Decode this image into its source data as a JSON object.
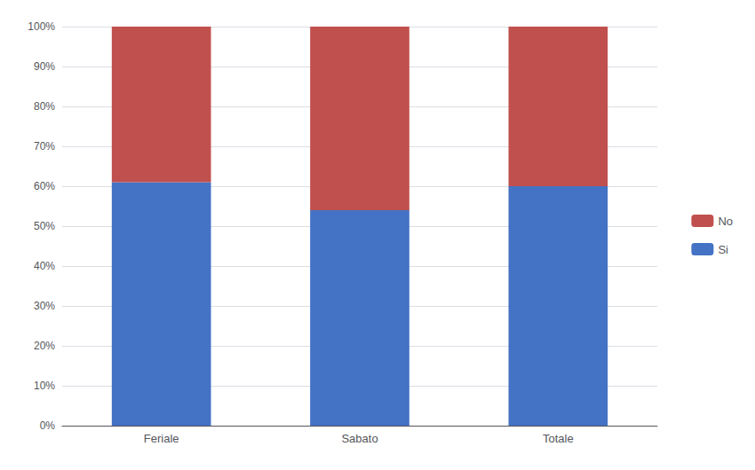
{
  "chart_data": {
    "type": "bar",
    "stacked": true,
    "categories": [
      "Feriale",
      "Sabato",
      "Totale"
    ],
    "series": [
      {
        "name": "Si",
        "color": "#4472C4",
        "values": [
          0.61,
          0.54,
          0.6
        ]
      },
      {
        "name": "No",
        "color": "#C0504D",
        "values": [
          0.39,
          0.46,
          0.4
        ]
      }
    ],
    "ylim": [
      0,
      1.0
    ],
    "yticks": [
      {
        "value": 0.0,
        "label": "0%"
      },
      {
        "value": 0.1,
        "label": "10%"
      },
      {
        "value": 0.2,
        "label": "20%"
      },
      {
        "value": 0.3,
        "label": "30%"
      },
      {
        "value": 0.4,
        "label": "40%"
      },
      {
        "value": 0.5,
        "label": "50%"
      },
      {
        "value": 0.6,
        "label": "60%"
      },
      {
        "value": 0.7,
        "label": "70%"
      },
      {
        "value": 0.8,
        "label": "80%"
      },
      {
        "value": 0.9,
        "label": "90%"
      },
      {
        "value": 1.0,
        "label": "100%"
      }
    ],
    "grid": true,
    "legend": "right"
  }
}
